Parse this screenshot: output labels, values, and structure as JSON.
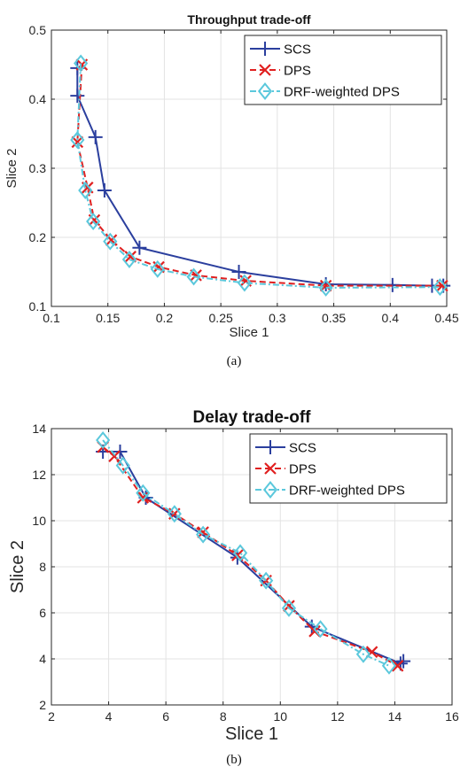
{
  "chart_data": [
    {
      "type": "line",
      "title": "Throughput trade-off",
      "xlabel": "Slice 1",
      "ylabel": "Slice 2",
      "xlim": [
        0.1,
        0.45
      ],
      "ylim": [
        0.1,
        0.5
      ],
      "xticks": [
        "0.1",
        "0.15",
        "0.2",
        "0.25",
        "0.3",
        "0.35",
        "0.4",
        "0.45"
      ],
      "yticks": [
        "0.1",
        "0.2",
        "0.3",
        "0.4",
        "0.5"
      ],
      "grid": true,
      "legend": "top-right",
      "caption": "(a)",
      "series": [
        {
          "name": "SCS",
          "color": "#2b3f9e",
          "dash": "solid",
          "marker": "plus",
          "x": [
            0.123,
            0.123,
            0.139,
            0.147,
            0.178,
            0.266,
            0.343,
            0.402,
            0.437,
            0.447
          ],
          "y": [
            0.445,
            0.405,
            0.345,
            0.268,
            0.185,
            0.15,
            0.132,
            0.131,
            0.13,
            0.13
          ]
        },
        {
          "name": "DPS",
          "color": "#e02020",
          "dash": "dashed",
          "marker": "x",
          "x": [
            0.127,
            0.123,
            0.132,
            0.138,
            0.153,
            0.17,
            0.195,
            0.228,
            0.272,
            0.343,
            0.446
          ],
          "y": [
            0.45,
            0.338,
            0.272,
            0.225,
            0.196,
            0.172,
            0.157,
            0.145,
            0.137,
            0.13,
            0.13
          ]
        },
        {
          "name": "DRF-weighted DPS",
          "color": "#5bc8dc",
          "dash": "dashdot",
          "marker": "diamond",
          "x": [
            0.126,
            0.123,
            0.13,
            0.137,
            0.152,
            0.169,
            0.194,
            0.226,
            0.271,
            0.343,
            0.444
          ],
          "y": [
            0.452,
            0.341,
            0.268,
            0.223,
            0.194,
            0.168,
            0.154,
            0.143,
            0.134,
            0.127,
            0.128
          ]
        }
      ]
    },
    {
      "type": "line",
      "title": "Delay trade-off",
      "xlabel": "Slice 1",
      "ylabel": "Slice 2",
      "xlim": [
        2,
        16
      ],
      "ylim": [
        2,
        14
      ],
      "xticks": [
        "2",
        "4",
        "6",
        "8",
        "10",
        "12",
        "14",
        "16"
      ],
      "yticks": [
        "2",
        "4",
        "6",
        "8",
        "10",
        "12",
        "14"
      ],
      "grid": true,
      "legend": "top-right",
      "caption": "(b)",
      "series": [
        {
          "name": "SCS",
          "color": "#2b3f9e",
          "dash": "solid",
          "marker": "plus",
          "x": [
            3.8,
            4.4,
            5.3,
            8.5,
            11.1,
            14.2,
            14.3
          ],
          "y": [
            13.0,
            13.0,
            11.0,
            8.4,
            5.4,
            3.8,
            3.9
          ]
        },
        {
          "name": "DPS",
          "color": "#e02020",
          "dash": "dashed",
          "marker": "x",
          "x": [
            3.8,
            4.2,
            5.2,
            6.3,
            7.3,
            8.5,
            9.5,
            10.3,
            11.2,
            13.2,
            14.1
          ],
          "y": [
            13.2,
            12.8,
            11.0,
            10.3,
            9.5,
            8.5,
            7.4,
            6.3,
            5.2,
            4.3,
            3.7
          ]
        },
        {
          "name": "DRF-weighted DPS",
          "color": "#5bc8dc",
          "dash": "dashdot",
          "marker": "diamond",
          "x": [
            3.8,
            4.5,
            5.2,
            6.3,
            7.3,
            8.6,
            9.5,
            10.3,
            11.4,
            12.9,
            13.8
          ],
          "y": [
            13.5,
            12.4,
            11.2,
            10.3,
            9.4,
            8.6,
            7.4,
            6.2,
            5.3,
            4.2,
            3.7
          ]
        }
      ]
    }
  ]
}
